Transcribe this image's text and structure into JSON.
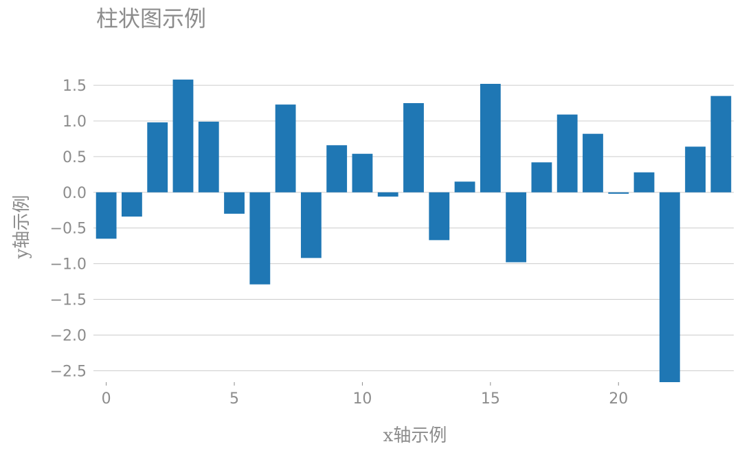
{
  "chart_data": {
    "type": "bar",
    "title": "柱状图示例",
    "xlabel": "x轴示例",
    "ylabel": "y轴示例",
    "x": [
      0,
      1,
      2,
      3,
      4,
      5,
      6,
      7,
      8,
      9,
      10,
      11,
      12,
      13,
      14,
      15,
      16,
      17,
      18,
      19,
      20,
      21,
      22,
      23,
      24
    ],
    "values": [
      -0.65,
      -0.34,
      0.98,
      1.58,
      0.99,
      -0.3,
      -1.29,
      1.23,
      -0.92,
      0.66,
      0.54,
      -0.06,
      1.25,
      -0.67,
      0.15,
      1.52,
      -0.98,
      0.42,
      1.09,
      0.82,
      -0.02,
      0.28,
      -2.66,
      0.64,
      1.35
    ],
    "xticks": [
      0,
      5,
      10,
      15,
      20
    ],
    "yticks": [
      -2.5,
      -2.0,
      -1.5,
      -1.0,
      -0.5,
      0.0,
      0.5,
      1.0,
      1.5
    ],
    "xlim": [
      -0.5,
      24.5
    ],
    "ylim": [
      -2.66,
      1.78
    ],
    "grid": "horizontal",
    "bar_color": "#1f77b4",
    "text_color": "#8c8c8c",
    "grid_color": "#cccccc"
  }
}
